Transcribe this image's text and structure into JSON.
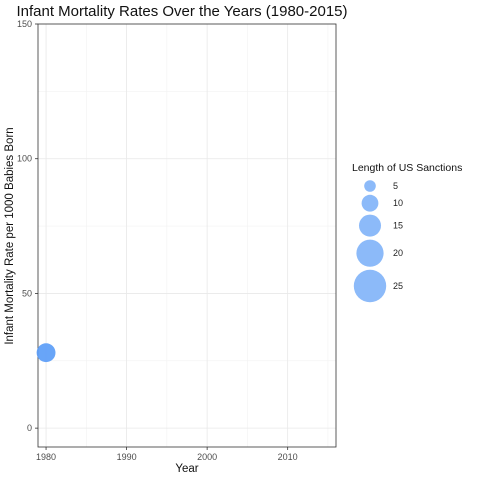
{
  "chart_data": {
    "type": "scatter",
    "title": "Infant Mortality Rates Over the Years (1980-2015)",
    "xlabel": "Year",
    "ylabel": "Infant Mortality Rate per 1000 Babies Born",
    "xlim": [
      1979,
      2016
    ],
    "ylim": [
      -7,
      150
    ],
    "x_ticks": [
      1980,
      1990,
      2000,
      2010
    ],
    "y_ticks": [
      0,
      50,
      100,
      150
    ],
    "grid": true,
    "legend_placement": "right",
    "point_color": "#5b9df7",
    "points": [
      {
        "x": 1980,
        "y": 28,
        "size": 12
      }
    ],
    "legend": {
      "title": "Length of US Sanctions",
      "entries": [
        {
          "label": "5",
          "size": 5
        },
        {
          "label": "10",
          "size": 10
        },
        {
          "label": "15",
          "size": 15
        },
        {
          "label": "20",
          "size": 20
        },
        {
          "label": "25",
          "size": 25
        }
      ]
    }
  }
}
